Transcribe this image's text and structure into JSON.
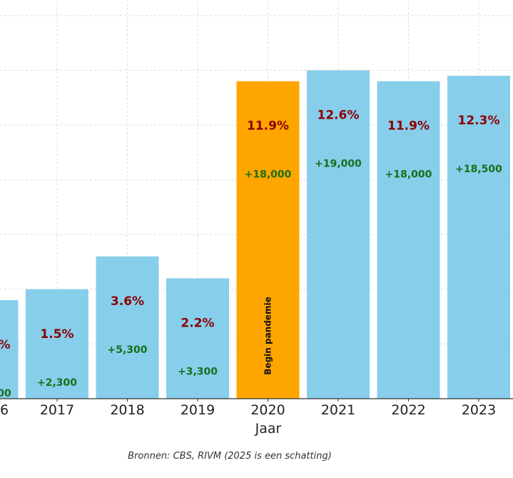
{
  "chart_data": {
    "type": "bar",
    "categories": [
      "6",
      "2017",
      "2018",
      "2019",
      "2020",
      "2021",
      "2022",
      "2023"
    ],
    "values": [
      1.8,
      2.0,
      2.6,
      2.2,
      5.8,
      6.0,
      5.8,
      5.9
    ],
    "pct_labels": [
      "%",
      "1.5%",
      "3.6%",
      "2.2%",
      "11.9%",
      "12.6%",
      "11.9%",
      "12.3%"
    ],
    "increase_labels": [
      "00",
      "+2,300",
      "+5,300",
      "+3,300",
      "+18,000",
      "+19,000",
      "+18,000",
      "+18,500"
    ],
    "highlight_index": 4,
    "annotation": "Begin pandemie",
    "xlabel": "Jaar",
    "ylabel": "",
    "ylim": [
      0,
      7.3
    ],
    "grid": true,
    "caption": "Bronnen: CBS, RIVM (2025 is een schatting)",
    "colors": {
      "bar": "#87ceeb",
      "highlight": "#ffa500",
      "pct": "#8b0000",
      "increase": "#1a6e1a"
    }
  }
}
